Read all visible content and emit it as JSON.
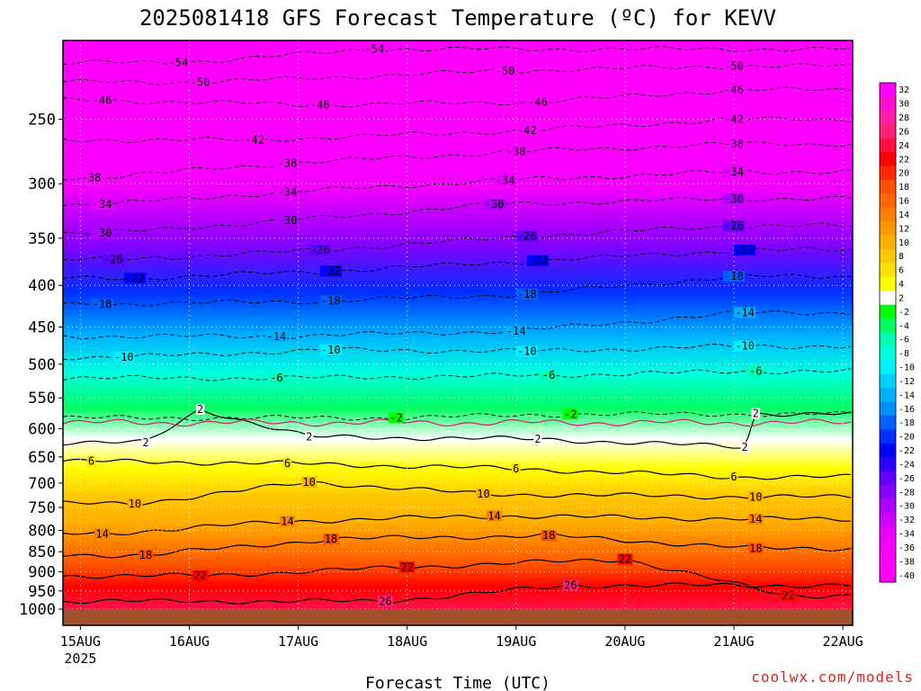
{
  "chart_data": {
    "type": "heatmap",
    "title": "2025081418 GFS Forecast Temperature (ºC) for KEVV",
    "xlabel": "Forecast Time (UTC)",
    "ylabel": "",
    "y_scale": "log",
    "y_inverted": true,
    "ylim": [
      1000,
      200
    ],
    "y_ticks": [
      250,
      300,
      350,
      400,
      450,
      500,
      550,
      600,
      650,
      700,
      750,
      800,
      850,
      900,
      950,
      1000
    ],
    "x_ticks": [
      "15AUG",
      "16AUG",
      "17AUG",
      "18AUG",
      "19AUG",
      "20AUG",
      "21AUG",
      "22AUG"
    ],
    "x_tick_sublabel": "2025",
    "colorbar_levels": [
      32,
      30,
      28,
      26,
      24,
      22,
      20,
      18,
      16,
      14,
      12,
      10,
      8,
      6,
      4,
      2,
      -2,
      -4,
      -6,
      -8,
      -10,
      -12,
      -14,
      -16,
      -18,
      -20,
      -22,
      -24,
      -26,
      -28,
      -30,
      -32,
      -34,
      -36,
      -38,
      -40
    ],
    "colorbar_colors": [
      "#ff00ff",
      "#ff10d0",
      "#ff20a8",
      "#ff2078",
      "#ff1040",
      "#ff0000",
      "#ff2800",
      "#ff5000",
      "#ff6800",
      "#ff8000",
      "#ff9800",
      "#ffb000",
      "#ffc800",
      "#ffe000",
      "#ffff00",
      "#ffffff",
      "#00ff00",
      "#00ff60",
      "#00ffb0",
      "#00ffe0",
      "#00f0ff",
      "#00d0ff",
      "#00b0ff",
      "#0090ff",
      "#0060ff",
      "#0030ff",
      "#0000ff",
      "#3000ff",
      "#6000ff",
      "#8800ff",
      "#b000ff",
      "#d000ff",
      "#e800ff",
      "#f400ff",
      "#fa00ff",
      "#ff00ff"
    ],
    "temperature_profile": [
      {
        "p": 1000,
        "t": 27
      },
      {
        "p": 950,
        "t": 25
      },
      {
        "p": 900,
        "t": 22
      },
      {
        "p": 850,
        "t": 18
      },
      {
        "p": 800,
        "t": 14
      },
      {
        "p": 750,
        "t": 11
      },
      {
        "p": 700,
        "t": 8
      },
      {
        "p": 650,
        "t": 5
      },
      {
        "p": 600,
        "t": 1
      },
      {
        "p": 550,
        "t": -3
      },
      {
        "p": 500,
        "t": -7
      },
      {
        "p": 450,
        "t": -13
      },
      {
        "p": 400,
        "t": -19
      },
      {
        "p": 350,
        "t": -27
      },
      {
        "p": 300,
        "t": -35
      },
      {
        "p": 250,
        "t": -44
      },
      {
        "p": 200,
        "t": -54
      }
    ],
    "contour_labels": [
      {
        "text": "-54",
        "day": 0.9,
        "p": 213
      },
      {
        "text": "-54",
        "day": 2.7,
        "p": 205
      },
      {
        "text": "-50",
        "day": 1.1,
        "p": 225
      },
      {
        "text": "-50",
        "day": 3.9,
        "p": 218
      },
      {
        "text": "-50",
        "day": 6.0,
        "p": 215
      },
      {
        "text": "-46",
        "day": 0.2,
        "p": 237
      },
      {
        "text": "-46",
        "day": 2.2,
        "p": 240
      },
      {
        "text": "-46",
        "day": 4.2,
        "p": 238
      },
      {
        "text": "-46",
        "day": 6.0,
        "p": 230
      },
      {
        "text": "-42",
        "day": 1.6,
        "p": 265
      },
      {
        "text": "-42",
        "day": 4.1,
        "p": 258
      },
      {
        "text": "-42",
        "day": 6.0,
        "p": 250
      },
      {
        "text": "-38",
        "day": 0.1,
        "p": 295
      },
      {
        "text": "-38",
        "day": 1.9,
        "p": 283
      },
      {
        "text": "-38",
        "day": 4.0,
        "p": 274
      },
      {
        "text": "-38",
        "day": 6.0,
        "p": 268
      },
      {
        "text": "-34",
        "day": 0.2,
        "p": 318
      },
      {
        "text": "-34",
        "day": 1.9,
        "p": 307
      },
      {
        "text": "-34",
        "day": 3.9,
        "p": 297
      },
      {
        "text": "-34",
        "day": 6.0,
        "p": 290
      },
      {
        "text": "-30",
        "day": 0.2,
        "p": 345
      },
      {
        "text": "-30",
        "day": 1.9,
        "p": 333
      },
      {
        "text": "-30",
        "day": 3.8,
        "p": 318
      },
      {
        "text": "-30",
        "day": 6.0,
        "p": 313
      },
      {
        "text": "-26",
        "day": 0.3,
        "p": 372
      },
      {
        "text": "-26",
        "day": 2.2,
        "p": 362
      },
      {
        "text": "-26",
        "day": 4.1,
        "p": 348
      },
      {
        "text": "-26",
        "day": 6.0,
        "p": 338
      },
      {
        "text": "-22",
        "day": 0.5,
        "p": 392
      },
      {
        "text": "-22",
        "day": 2.3,
        "p": 384
      },
      {
        "text": "-22",
        "day": 4.2,
        "p": 373
      },
      {
        "text": "-22",
        "day": 6.1,
        "p": 362
      },
      {
        "text": "-18",
        "day": 0.2,
        "p": 422
      },
      {
        "text": "-18",
        "day": 2.3,
        "p": 418
      },
      {
        "text": "-18",
        "day": 4.1,
        "p": 410
      },
      {
        "text": "-18",
        "day": 6.0,
        "p": 390
      },
      {
        "text": "-14",
        "day": 1.8,
        "p": 462
      },
      {
        "text": "-14",
        "day": 4.0,
        "p": 455
      },
      {
        "text": "-14",
        "day": 6.1,
        "p": 432
      },
      {
        "text": "-10",
        "day": 0.4,
        "p": 490
      },
      {
        "text": "-10",
        "day": 2.3,
        "p": 480
      },
      {
        "text": "-10",
        "day": 4.1,
        "p": 482
      },
      {
        "text": "-10",
        "day": 6.1,
        "p": 475
      },
      {
        "text": "-6",
        "day": 1.8,
        "p": 520
      },
      {
        "text": "-6",
        "day": 4.3,
        "p": 516
      },
      {
        "text": "-6",
        "day": 6.2,
        "p": 510
      },
      {
        "text": "2",
        "day": 1.1,
        "p": 568
      },
      {
        "text": "-2",
        "day": 2.9,
        "p": 582
      },
      {
        "text": "-2",
        "day": 4.5,
        "p": 576
      },
      {
        "text": "2",
        "day": 6.2,
        "p": 575
      },
      {
        "text": "2",
        "day": 0.6,
        "p": 624
      },
      {
        "text": "2",
        "day": 2.1,
        "p": 614
      },
      {
        "text": "2",
        "day": 4.2,
        "p": 618
      },
      {
        "text": "2",
        "day": 6.1,
        "p": 632
      },
      {
        "text": "6",
        "day": 0.1,
        "p": 658
      },
      {
        "text": "6",
        "day": 1.9,
        "p": 662
      },
      {
        "text": "6",
        "day": 4.0,
        "p": 672
      },
      {
        "text": "6",
        "day": 6.0,
        "p": 688
      },
      {
        "text": "10",
        "day": 0.5,
        "p": 742
      },
      {
        "text": "10",
        "day": 2.1,
        "p": 698
      },
      {
        "text": "10",
        "day": 3.7,
        "p": 722
      },
      {
        "text": "10",
        "day": 6.2,
        "p": 728
      },
      {
        "text": "14",
        "day": 0.2,
        "p": 808
      },
      {
        "text": "14",
        "day": 1.9,
        "p": 780
      },
      {
        "text": "14",
        "day": 3.8,
        "p": 768
      },
      {
        "text": "14",
        "day": 6.2,
        "p": 775
      },
      {
        "text": "18",
        "day": 0.6,
        "p": 858
      },
      {
        "text": "18",
        "day": 2.3,
        "p": 820
      },
      {
        "text": "18",
        "day": 4.3,
        "p": 812
      },
      {
        "text": "18",
        "day": 6.2,
        "p": 842
      },
      {
        "text": "22",
        "day": 1.1,
        "p": 910
      },
      {
        "text": "22",
        "day": 3.0,
        "p": 888
      },
      {
        "text": "22",
        "day": 5.0,
        "p": 868
      },
      {
        "text": "22",
        "day": 6.5,
        "p": 962
      },
      {
        "text": "26",
        "day": 2.8,
        "p": 978
      },
      {
        "text": "26",
        "day": 4.5,
        "p": 935
      }
    ]
  },
  "credit": "coolwx.com/models"
}
